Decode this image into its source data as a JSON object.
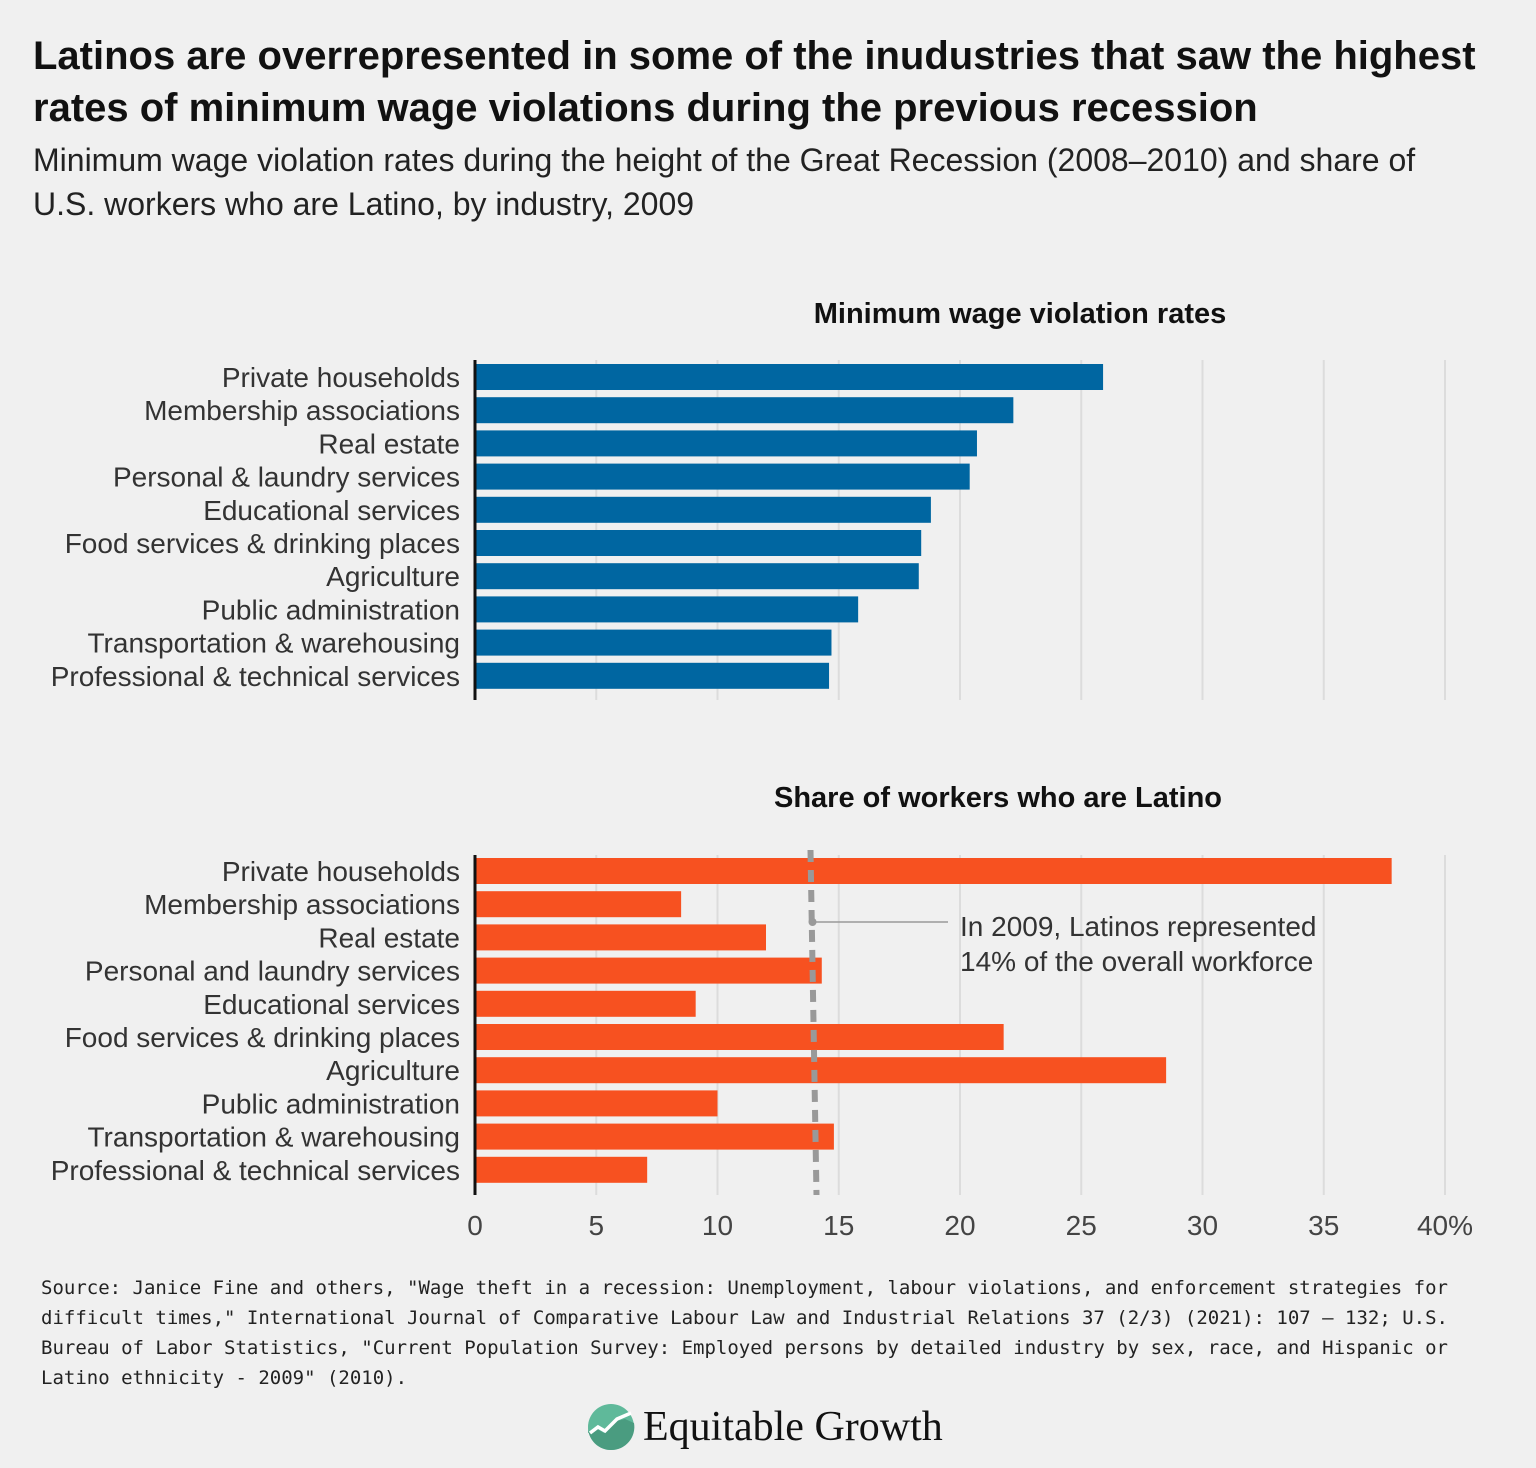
{
  "title": "Latinos are overrepresented in some of the inudustries that saw the highest rates of minimum wage violations during the previous recession",
  "subtitle": "Minimum wage violation rates during the height of the Great Recession (2008–2010) and share of U.S. workers who are Latino, by industry, 2009",
  "chart_data": [
    {
      "type": "bar",
      "orientation": "horizontal",
      "title": "Minimum wage violation rates",
      "categories": [
        "Private households",
        "Membership associations",
        "Real estate",
        "Personal & laundry services",
        "Educational services",
        "Food services & drinking places",
        "Agriculture",
        "Public administration",
        "Transportation & warehousing",
        "Professional & technical services"
      ],
      "values": [
        25.9,
        22.2,
        20.7,
        20.4,
        18.8,
        18.4,
        18.3,
        15.8,
        14.7,
        14.6
      ],
      "xlim": [
        0,
        40
      ],
      "grid": true,
      "color": "#0066a1"
    },
    {
      "type": "bar",
      "orientation": "horizontal",
      "title": "Share of workers who are Latino",
      "categories": [
        "Private households",
        "Membership associations",
        "Real estate",
        "Personal and laundry services",
        "Educational services",
        "Food services & drinking places",
        "Agriculture",
        "Public administration",
        "Transportation & warehousing",
        "Professional & technical services"
      ],
      "values": [
        37.8,
        8.5,
        12.0,
        14.3,
        9.1,
        21.8,
        28.5,
        10.0,
        14.8,
        7.1
      ],
      "xlim": [
        0,
        40
      ],
      "grid": true,
      "color": "#f75120",
      "x_ticks": [
        "0",
        "5",
        "10",
        "15",
        "20",
        "25",
        "30",
        "35",
        "40%"
      ],
      "reference_line": {
        "value": 14,
        "style": "dashed",
        "color": "#999999"
      },
      "annotation": "In 2009, Latinos represented 14% of the overall workforce"
    }
  ],
  "source": "Source: Janice Fine and others, \"Wage theft in a recession: Unemployment, labour violations, and enforcement strategies for difficult times,\" International Journal of Comparative Labour Law and Industrial Relations 37 (2/3) (2021): 107 – 132; U.S. Bureau of Labor Statistics, \"Current Population Survey: Employed persons by detailed industry by sex, race, and Hispanic or Latino ethnicity - 2009\" (2010).",
  "logo": {
    "text": "Equitable Growth",
    "icon": "rising-line-circle-icon",
    "color": "#5fb99a"
  }
}
